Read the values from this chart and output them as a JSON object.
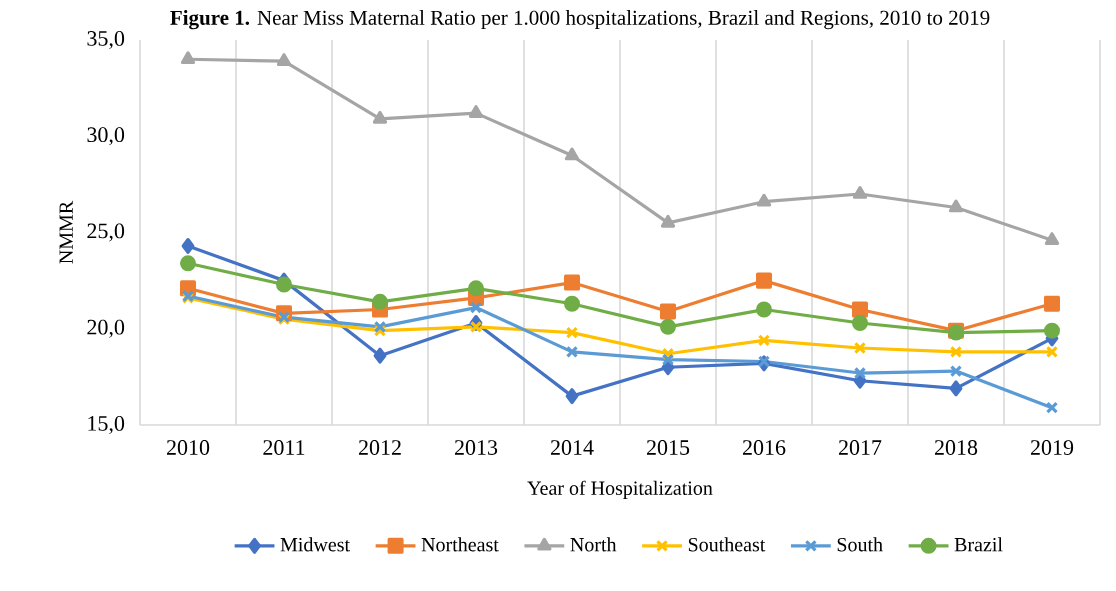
{
  "chart_data": {
    "type": "line",
    "title": "**Figure 1.** Near Miss Maternal Ratio per 1.000 hospitalizations, Brazil and Regions, 2010 to 2019",
    "xlabel": "Year of Hospitalization",
    "ylabel": "NMMR",
    "categories": [
      "2010",
      "2011",
      "2012",
      "2013",
      "2014",
      "2015",
      "2016",
      "2017",
      "2018",
      "2019"
    ],
    "ylim": [
      15,
      35
    ],
    "yticks": [
      {
        "value": 15,
        "label": "15,0"
      },
      {
        "value": 20,
        "label": "20,0"
      },
      {
        "value": 25,
        "label": "25,0"
      },
      {
        "value": 30,
        "label": "30,0"
      },
      {
        "value": 35,
        "label": "35,0"
      }
    ],
    "grid": "x",
    "legend": "bottom",
    "line_style": "solid",
    "series": [
      {
        "name": "Midwest",
        "color": "#4472c4",
        "marker": "diamond",
        "values": [
          24.3,
          22.5,
          18.6,
          20.3,
          16.5,
          18.0,
          18.2,
          17.3,
          16.9,
          19.5
        ]
      },
      {
        "name": "Northeast",
        "color": "#ed7d31",
        "marker": "square",
        "values": [
          22.1,
          20.8,
          21.0,
          21.6,
          22.4,
          20.9,
          22.5,
          21.0,
          19.9,
          21.3
        ]
      },
      {
        "name": "North",
        "color": "#a5a5a5",
        "marker": "triangle",
        "values": [
          34.0,
          33.9,
          30.9,
          31.2,
          29.0,
          25.5,
          26.6,
          27.0,
          26.3,
          24.6
        ]
      },
      {
        "name": "Southeast",
        "color": "#ffc000",
        "marker": "cross",
        "values": [
          21.6,
          20.5,
          19.9,
          20.1,
          19.8,
          18.7,
          19.4,
          19.0,
          18.8,
          18.8
        ]
      },
      {
        "name": "South",
        "color": "#5b9bd5",
        "marker": "cross",
        "values": [
          21.7,
          20.6,
          20.1,
          21.1,
          18.8,
          18.4,
          18.3,
          17.7,
          17.8,
          15.9
        ]
      },
      {
        "name": "Brazil",
        "color": "#70ad47",
        "marker": "circle",
        "values": [
          23.4,
          22.3,
          21.4,
          22.1,
          21.3,
          20.1,
          21.0,
          20.3,
          19.8,
          19.9
        ]
      }
    ]
  }
}
